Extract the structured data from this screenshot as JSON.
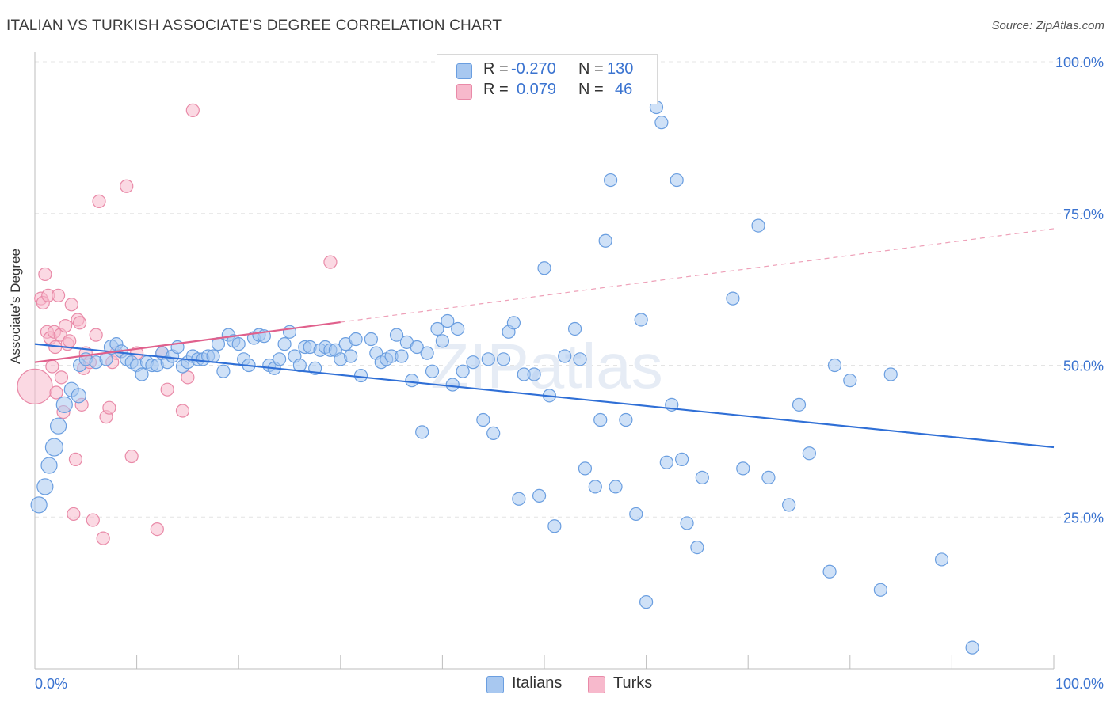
{
  "header": {
    "title": "ITALIAN VS TURKISH ASSOCIATE'S DEGREE CORRELATION CHART",
    "source": "Source: ZipAtlas.com"
  },
  "watermark": "ZIPatlas",
  "legend": {
    "rows": [
      {
        "r_label": "R =",
        "r_value": "-0.270",
        "n_label": "N =",
        "n_value": "130",
        "color": "#a8c8f0",
        "border": "#6a9ee0"
      },
      {
        "r_label": "R =",
        "r_value": "0.079",
        "n_label": "N =",
        "n_value": "46",
        "color": "#f7b9cc",
        "border": "#e98aa8"
      }
    ]
  },
  "bottom_legend": [
    {
      "label": "Italians",
      "color": "#a8c8f0",
      "border": "#6a9ee0"
    },
    {
      "label": "Turks",
      "color": "#f7b9cc",
      "border": "#e98aa8"
    }
  ],
  "chart_data": {
    "type": "scatter",
    "title": "ITALIAN VS TURKISH ASSOCIATE'S DEGREE CORRELATION CHART",
    "xlabel": "",
    "ylabel": "Associate's Degree",
    "xlim": [
      0,
      100
    ],
    "ylim": [
      0,
      100
    ],
    "x_tick_labels": [
      "0.0%",
      "100.0%"
    ],
    "y_tick_values": [
      25,
      50,
      75,
      100
    ],
    "y_tick_labels": [
      "25.0%",
      "50.0%",
      "75.0%",
      "100.0%"
    ],
    "grid": true,
    "series": [
      {
        "name": "Italians",
        "color": "#6a9ee0",
        "fill": "#a8c8f0",
        "trend": {
          "x0": 0,
          "y0": 53.5,
          "x1": 100,
          "y1": 36.5,
          "dashed_from": null
        },
        "points": [
          [
            0.4,
            27,
            10
          ],
          [
            1,
            30,
            10
          ],
          [
            1.4,
            33.5,
            10
          ],
          [
            1.9,
            36.5,
            11
          ],
          [
            2.3,
            40,
            10
          ],
          [
            2.9,
            43.5,
            10
          ],
          [
            3.6,
            46,
            9
          ],
          [
            4.3,
            45,
            9
          ],
          [
            4.4,
            50,
            8
          ],
          [
            5,
            51,
            8
          ],
          [
            6,
            50.5,
            8
          ],
          [
            7,
            51,
            8
          ],
          [
            7.5,
            53,
            9
          ],
          [
            8,
            53.5,
            8
          ],
          [
            8.5,
            52.3,
            8
          ],
          [
            9,
            51,
            8
          ],
          [
            9.5,
            50.5,
            8
          ],
          [
            10,
            50,
            8
          ],
          [
            10.5,
            48.5,
            8
          ],
          [
            11,
            50.5,
            8
          ],
          [
            11.5,
            50,
            8
          ],
          [
            12,
            50,
            8
          ],
          [
            12.5,
            52,
            8
          ],
          [
            13,
            50.5,
            8
          ],
          [
            13.5,
            51.5,
            8
          ],
          [
            14,
            53,
            8
          ],
          [
            14.5,
            49.8,
            8
          ],
          [
            15,
            50.5,
            8
          ],
          [
            15.5,
            51.5,
            8
          ],
          [
            16,
            51,
            8
          ],
          [
            16.5,
            51,
            8
          ],
          [
            17,
            51.5,
            8
          ],
          [
            17.5,
            51.5,
            8
          ],
          [
            18,
            53.5,
            8
          ],
          [
            18.5,
            49,
            8
          ],
          [
            19,
            55,
            8
          ],
          [
            19.5,
            54,
            8
          ],
          [
            20,
            53.5,
            8
          ],
          [
            20.5,
            51,
            8
          ],
          [
            21,
            50,
            8
          ],
          [
            21.5,
            54.5,
            8
          ],
          [
            22,
            55,
            8
          ],
          [
            22.5,
            54.8,
            8
          ],
          [
            23,
            50,
            8
          ],
          [
            23.5,
            49.5,
            8
          ],
          [
            24,
            51,
            8
          ],
          [
            24.5,
            53.5,
            8
          ],
          [
            25,
            55.5,
            8
          ],
          [
            25.5,
            51.5,
            8
          ],
          [
            26,
            50,
            8
          ],
          [
            26.5,
            53,
            8
          ],
          [
            27,
            53,
            8
          ],
          [
            27.5,
            49.5,
            8
          ],
          [
            28,
            52.5,
            8
          ],
          [
            28.5,
            53,
            8
          ],
          [
            29,
            52.5,
            8
          ],
          [
            29.5,
            52.5,
            8
          ],
          [
            30,
            51,
            8
          ],
          [
            30.5,
            53.5,
            8
          ],
          [
            31,
            51.5,
            8
          ],
          [
            31.5,
            54.3,
            8
          ],
          [
            32,
            48.3,
            8
          ],
          [
            33,
            54.3,
            8
          ],
          [
            33.5,
            52,
            8
          ],
          [
            34,
            50.5,
            8
          ],
          [
            34.5,
            51,
            8
          ],
          [
            35,
            51.5,
            8
          ],
          [
            35.5,
            55,
            8
          ],
          [
            36,
            51.5,
            8
          ],
          [
            36.5,
            53.8,
            8
          ],
          [
            37,
            47.5,
            8
          ],
          [
            37.5,
            53,
            8
          ],
          [
            38,
            39,
            8
          ],
          [
            38.5,
            52,
            8
          ],
          [
            39,
            49,
            8
          ],
          [
            39.5,
            56,
            8
          ],
          [
            40,
            54,
            8
          ],
          [
            40.5,
            57.3,
            8
          ],
          [
            41,
            46.8,
            8
          ],
          [
            41.5,
            56,
            8
          ],
          [
            42,
            49,
            8
          ],
          [
            43,
            50.5,
            8
          ],
          [
            44,
            41,
            8
          ],
          [
            44.5,
            51,
            8
          ],
          [
            45,
            38.8,
            8
          ],
          [
            46,
            51,
            8
          ],
          [
            46.5,
            55.5,
            8
          ],
          [
            47,
            57,
            8
          ],
          [
            47.5,
            28,
            8
          ],
          [
            48,
            48.5,
            8
          ],
          [
            49,
            48.5,
            8
          ],
          [
            49.5,
            28.5,
            8
          ],
          [
            50,
            66,
            8
          ],
          [
            50.5,
            45,
            8
          ],
          [
            51,
            23.5,
            8
          ],
          [
            52,
            51.5,
            8
          ],
          [
            53,
            56,
            8
          ],
          [
            53.5,
            51,
            8
          ],
          [
            54,
            33,
            8
          ],
          [
            55,
            30,
            8
          ],
          [
            55.5,
            41,
            8
          ],
          [
            56,
            70.5,
            8
          ],
          [
            56.5,
            80.5,
            8
          ],
          [
            57,
            30,
            8
          ],
          [
            58,
            41,
            8
          ],
          [
            59,
            25.5,
            8
          ],
          [
            59.5,
            57.5,
            8
          ],
          [
            60,
            11,
            8
          ],
          [
            61,
            92.5,
            8
          ],
          [
            61.5,
            90,
            8
          ],
          [
            62,
            34,
            8
          ],
          [
            62.5,
            43.5,
            8
          ],
          [
            63,
            80.5,
            8
          ],
          [
            63.5,
            34.5,
            8
          ],
          [
            64,
            24,
            8
          ],
          [
            65,
            20,
            8
          ],
          [
            65.5,
            31.5,
            8
          ],
          [
            68.5,
            61,
            8
          ],
          [
            69.5,
            33,
            8
          ],
          [
            71,
            73,
            8
          ],
          [
            72,
            31.5,
            8
          ],
          [
            74,
            27,
            8
          ],
          [
            75,
            43.5,
            8
          ],
          [
            76,
            35.5,
            8
          ],
          [
            78,
            16,
            8
          ],
          [
            78.5,
            50,
            8
          ],
          [
            80,
            47.5,
            8
          ],
          [
            83,
            13,
            8
          ],
          [
            84,
            48.5,
            8
          ],
          [
            89,
            18,
            8
          ],
          [
            92,
            3.5,
            8
          ]
        ]
      },
      {
        "name": "Turks",
        "color": "#e98aa8",
        "fill": "#f7b9cc",
        "trend": {
          "x0": 0,
          "y0": 50.5,
          "x1": 100,
          "y1": 72.5,
          "solid_until": 30
        },
        "points": [
          [
            0,
            46.5,
            22
          ],
          [
            0.6,
            61,
            8
          ],
          [
            0.8,
            60.3,
            8
          ],
          [
            1,
            65,
            8
          ],
          [
            1.2,
            55.5,
            8
          ],
          [
            1.3,
            61.5,
            8
          ],
          [
            1.5,
            54.5,
            8
          ],
          [
            1.7,
            49.8,
            8
          ],
          [
            1.9,
            55.5,
            8
          ],
          [
            2,
            53,
            8
          ],
          [
            2.1,
            45.5,
            8
          ],
          [
            2.3,
            61.5,
            8
          ],
          [
            2.5,
            55,
            8
          ],
          [
            2.6,
            48,
            8
          ],
          [
            2.8,
            42.3,
            8
          ],
          [
            3,
            56.5,
            8
          ],
          [
            3.2,
            53.5,
            8
          ],
          [
            3.4,
            54,
            8
          ],
          [
            3.6,
            60,
            8
          ],
          [
            3.8,
            25.5,
            8
          ],
          [
            4,
            34.5,
            8
          ],
          [
            4.2,
            57.5,
            8
          ],
          [
            4.4,
            57,
            8
          ],
          [
            4.6,
            43.5,
            8
          ],
          [
            4.8,
            49.5,
            8
          ],
          [
            5,
            52,
            8
          ],
          [
            5.4,
            50.5,
            8
          ],
          [
            5.7,
            24.5,
            8
          ],
          [
            6,
            55,
            8
          ],
          [
            6.3,
            77,
            8
          ],
          [
            6.7,
            21.5,
            8
          ],
          [
            7,
            41.5,
            8
          ],
          [
            7.3,
            43,
            8
          ],
          [
            7.6,
            50.5,
            8
          ],
          [
            8,
            52,
            8
          ],
          [
            9,
            79.5,
            8
          ],
          [
            9.5,
            35,
            8
          ],
          [
            10,
            52,
            8
          ],
          [
            12,
            23,
            8
          ],
          [
            12.5,
            52,
            8
          ],
          [
            13,
            46,
            8
          ],
          [
            14.5,
            42.5,
            8
          ],
          [
            15,
            48,
            8
          ],
          [
            15.5,
            92,
            8
          ],
          [
            29,
            67,
            8
          ]
        ]
      }
    ]
  }
}
